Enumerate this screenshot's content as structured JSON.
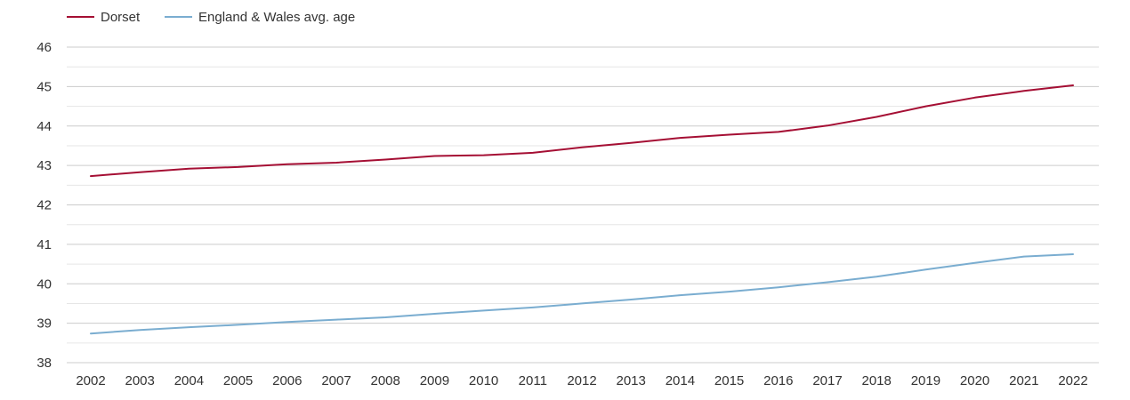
{
  "chart_data": {
    "type": "line",
    "title": "",
    "xlabel": "",
    "ylabel": "",
    "x": [
      "2002",
      "2003",
      "2004",
      "2005",
      "2006",
      "2007",
      "2008",
      "2009",
      "2010",
      "2011",
      "2012",
      "2013",
      "2014",
      "2015",
      "2016",
      "2017",
      "2018",
      "2019",
      "2020",
      "2021",
      "2022"
    ],
    "ylim": [
      38,
      46
    ],
    "yticks": [
      "38",
      "39",
      "40",
      "41",
      "42",
      "43",
      "44",
      "45",
      "46"
    ],
    "grid": true,
    "minor_grid": true,
    "legend_position": "top-left",
    "series": [
      {
        "name": "Dorset",
        "color": "#a50f34",
        "values": [
          42.73,
          42.83,
          42.92,
          42.96,
          43.03,
          43.07,
          43.15,
          43.24,
          43.26,
          43.32,
          43.46,
          43.57,
          43.7,
          43.78,
          43.85,
          44.01,
          44.23,
          44.5,
          44.72,
          44.89,
          45.03
        ]
      },
      {
        "name": "England & Wales avg. age",
        "color": "#7aadd0",
        "values": [
          38.74,
          38.83,
          38.9,
          38.96,
          39.03,
          39.09,
          39.15,
          39.24,
          39.32,
          39.4,
          39.5,
          39.6,
          39.71,
          39.8,
          39.91,
          40.04,
          40.18,
          40.36,
          40.53,
          40.69,
          40.75
        ]
      }
    ]
  }
}
